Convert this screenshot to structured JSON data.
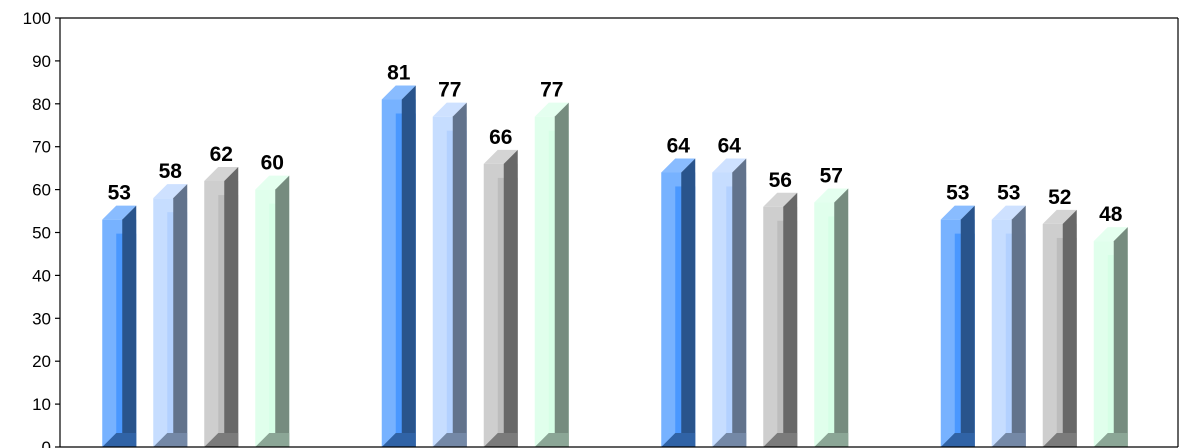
{
  "chart_data": {
    "type": "bar",
    "title": "",
    "xlabel": "",
    "ylabel": "",
    "categories": [
      "",
      "",
      "",
      ""
    ],
    "series": [
      {
        "color": "#4a98ff",
        "values": [
          53,
          81,
          64,
          53
        ]
      },
      {
        "color": "#b3d1ff",
        "values": [
          58,
          77,
          64,
          53
        ]
      },
      {
        "color": "#bdbdbd",
        "values": [
          62,
          66,
          56,
          52
        ]
      },
      {
        "color": "#d6ffe6",
        "values": [
          60,
          77,
          57,
          48
        ]
      }
    ],
    "ylim": [
      0,
      100
    ],
    "yticks": [
      "0",
      "10",
      "20",
      "30",
      "40",
      "50",
      "60",
      "70",
      "80",
      "90",
      "100"
    ],
    "data_labels": [
      [
        "53",
        "58",
        "62",
        "60"
      ],
      [
        "81",
        "77",
        "66",
        "77"
      ],
      [
        "64",
        "64",
        "56",
        "57"
      ],
      [
        "53",
        "53",
        "52",
        "48"
      ]
    ],
    "grid": false,
    "legend": "none"
  }
}
